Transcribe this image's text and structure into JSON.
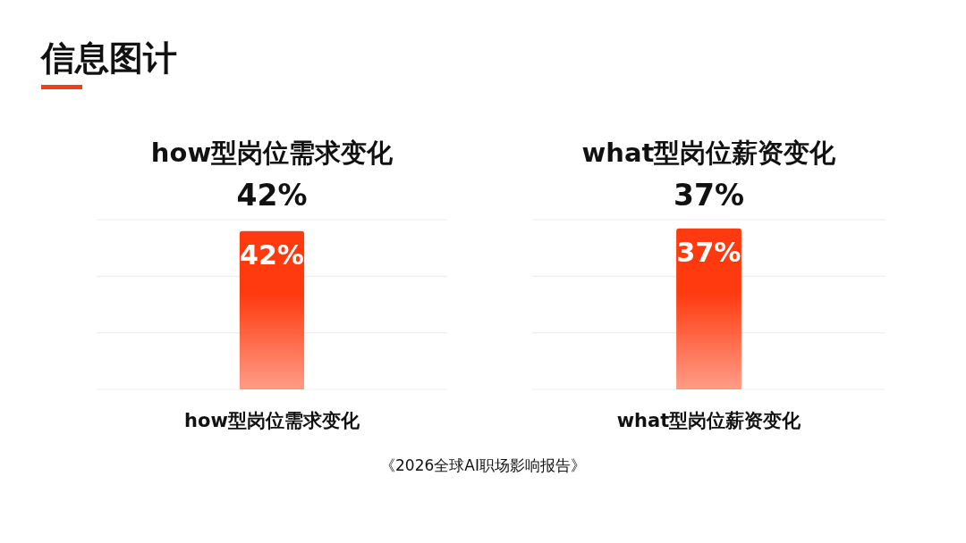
{
  "chart_data": [
    {
      "type": "bar",
      "title": "how型岗位需求变化",
      "subtitle": "42%",
      "categories": [
        "how型岗位需求变化"
      ],
      "values": [
        42
      ],
      "color": "#ff3a0f",
      "value_labels": [
        "42%"
      ],
      "ylim": [
        0,
        45
      ],
      "yticks": [
        {
          "value": 0,
          "label": null
        },
        {
          "value": 15,
          "label": null
        },
        {
          "value": 30,
          "label": null
        },
        {
          "value": 45,
          "label": null
        }
      ],
      "grid": "y",
      "tick_labels": "x",
      "annotations": [
        "信息图计"
      ]
    },
    {
      "type": "bar",
      "title": "what型岗位薪资变化",
      "subtitle": "37%",
      "categories": [
        "what型岗位薪资变化"
      ],
      "values": [
        37
      ],
      "color": "#ff3a0f",
      "value_labels": [
        "37%"
      ],
      "ylim": [
        0,
        39
      ],
      "yticks": [
        {
          "value": 0,
          "label": null
        },
        {
          "value": 13,
          "label": null
        },
        {
          "value": 26,
          "label": null
        },
        {
          "value": 39,
          "label": null
        }
      ],
      "grid": "y",
      "tick_labels": "x",
      "annotations": [
        "《2026全球AI职场影响报告》"
      ]
    }
  ]
}
